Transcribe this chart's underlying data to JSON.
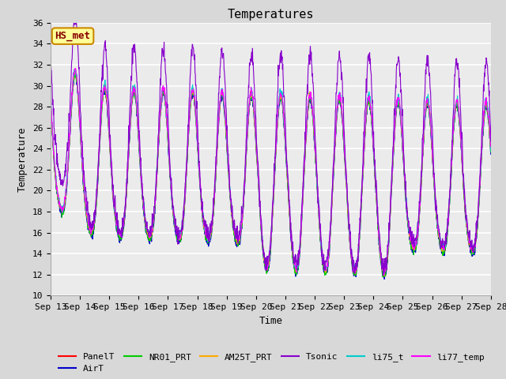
{
  "title": "Temperatures",
  "xlabel": "Time",
  "ylabel": "Temperature",
  "ylim": [
    10,
    36
  ],
  "yticks": [
    10,
    12,
    14,
    16,
    18,
    20,
    22,
    24,
    26,
    28,
    30,
    32,
    34,
    36
  ],
  "n_days": 15,
  "n_per_day": 96,
  "start_day": 13,
  "xtick_labels": [
    "Sep 13",
    "Sep 14",
    "Sep 15",
    "Sep 16",
    "Sep 17",
    "Sep 18",
    "Sep 19",
    "Sep 20",
    "Sep 21",
    "Sep 22",
    "Sep 23",
    "Sep 24",
    "Sep 25",
    "Sep 26",
    "Sep 27",
    "Sep 28"
  ],
  "series_colors": {
    "PanelT": "#ff0000",
    "AirT": "#0000cc",
    "NR01_PRT": "#00cc00",
    "AM25T_PRT": "#ffaa00",
    "Tsonic": "#8800cc",
    "li75_t": "#00cccc",
    "li77_temp": "#ff00ff"
  },
  "background_color": "#d8d8d8",
  "plot_bg_color": "#ebebeb",
  "annotation_text": "HS_met",
  "annotation_color": "#880000",
  "annotation_bg": "#ffff99",
  "annotation_border": "#cc8800",
  "title_fontsize": 11,
  "axis_label_fontsize": 9,
  "tick_fontsize": 8,
  "legend_fontsize": 8,
  "linewidth": 0.8
}
